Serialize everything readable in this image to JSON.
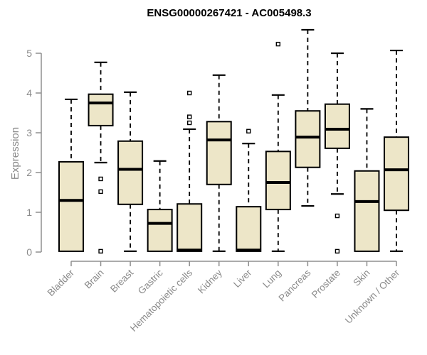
{
  "title": "ENSG00000267421 - AC005498.3",
  "y_axis": {
    "label": "Expression",
    "ticks": [
      0,
      1,
      2,
      3,
      4,
      5
    ]
  },
  "chart_data": {
    "type": "boxplot",
    "title": "ENSG00000267421 - AC005498.3",
    "xlabel": "",
    "ylabel": "Expression",
    "ylim": [
      0,
      5.65
    ],
    "yticks": [
      0,
      1,
      2,
      3,
      4,
      5
    ],
    "grid": false,
    "legend": "none",
    "categories": [
      "Bladder",
      "Brain",
      "Breast",
      "Gastric",
      "Hematopoietic cells",
      "Kidney",
      "Liver",
      "Lung",
      "Pancreas",
      "Prostate",
      "Skin",
      "Unknown / Other"
    ],
    "series": [
      {
        "name": "Bladder",
        "whisker_low": 0.02,
        "q1": 0.02,
        "median": 1.3,
        "q3": 2.27,
        "whisker_high": 3.84,
        "outliers": []
      },
      {
        "name": "Brain",
        "whisker_low": 2.25,
        "q1": 3.18,
        "median": 3.75,
        "q3": 3.97,
        "whisker_high": 4.77,
        "outliers": [
          1.84,
          1.52,
          0.02
        ]
      },
      {
        "name": "Breast",
        "whisker_low": 0.02,
        "q1": 1.2,
        "median": 2.08,
        "q3": 2.79,
        "whisker_high": 4.02,
        "outliers": []
      },
      {
        "name": "Gastric",
        "whisker_low": 0.02,
        "q1": 0.02,
        "median": 0.72,
        "q3": 1.07,
        "whisker_high": 2.29,
        "outliers": []
      },
      {
        "name": "Hematopoietic cells",
        "whisker_low": 0.02,
        "q1": 0.02,
        "median": 0.05,
        "q3": 1.21,
        "whisker_high": 3.09,
        "outliers": [
          4.0,
          3.4,
          3.25
        ]
      },
      {
        "name": "Kidney",
        "whisker_low": 0.02,
        "q1": 1.7,
        "median": 2.82,
        "q3": 3.28,
        "whisker_high": 4.45,
        "outliers": []
      },
      {
        "name": "Liver",
        "whisker_low": 0.02,
        "q1": 0.02,
        "median": 0.05,
        "q3": 1.14,
        "whisker_high": 2.73,
        "outliers": [
          3.04
        ]
      },
      {
        "name": "Lung",
        "whisker_low": 0.02,
        "q1": 1.07,
        "median": 1.75,
        "q3": 2.53,
        "whisker_high": 3.95,
        "outliers": [
          5.23
        ]
      },
      {
        "name": "Pancreas",
        "whisker_low": 1.16,
        "q1": 2.13,
        "median": 2.89,
        "q3": 3.55,
        "whisker_high": 5.59,
        "outliers": []
      },
      {
        "name": "Prostate",
        "whisker_low": 1.46,
        "q1": 2.61,
        "median": 3.09,
        "q3": 3.72,
        "whisker_high": 5.0,
        "outliers": [
          0.91,
          0.02
        ]
      },
      {
        "name": "Skin",
        "whisker_low": 0.02,
        "q1": 0.02,
        "median": 1.27,
        "q3": 2.04,
        "whisker_high": 3.6,
        "outliers": []
      },
      {
        "name": "Unknown / Other",
        "whisker_low": 0.02,
        "q1": 1.05,
        "median": 2.07,
        "q3": 2.89,
        "whisker_high": 5.07,
        "outliers": []
      }
    ],
    "style": {
      "box_fill": "#EDE6C8",
      "box_stroke": "#000000",
      "median_color": "#000000",
      "whisker_color": "#000000",
      "axis_color": "#8f8f8f",
      "label_color": "#8a8a8a",
      "title_color": "#000000",
      "background": "#ffffff"
    }
  }
}
